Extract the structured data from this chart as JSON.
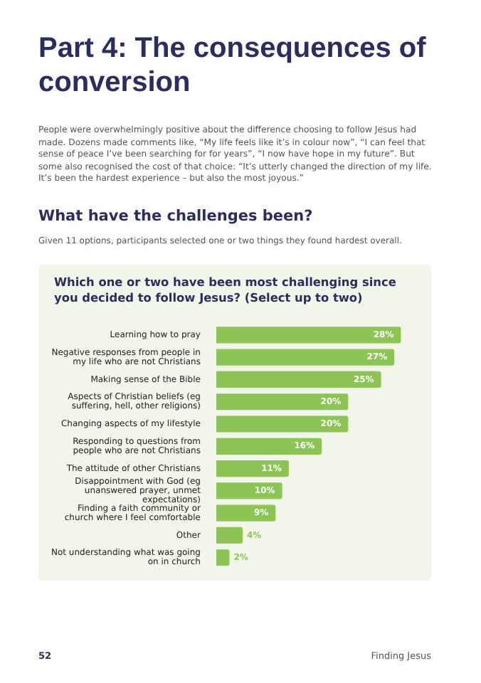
{
  "chart_data": {
    "type": "bar",
    "orientation": "horizontal",
    "title": "Which one or two have been most challenging since you decided to follow Jesus? (Select up to two)",
    "categories": [
      "Learning how to pray",
      "Negative responses from people in my life who are not Christians",
      "Making sense of the Bible",
      "Aspects of Christian beliefs (eg suffering, hell, other religions)",
      "Changing aspects of my lifestyle",
      "Responding to questions from people who are not Christians",
      "The attitude of other Christians",
      "Disappointment with God (eg unanswered prayer, unmet expectations)",
      "Finding a faith community or church where I feel comfortable",
      "Other",
      "Not understanding what was going on in church"
    ],
    "values": [
      28,
      27,
      25,
      20,
      20,
      16,
      11,
      10,
      9,
      4,
      2
    ],
    "color": "#8dc456",
    "value_labels": [
      "28%",
      "27%",
      "25%",
      "20%",
      "20%",
      "16%",
      "11%",
      "10%",
      "9%",
      "4%",
      "2%"
    ],
    "tick_labels": "y",
    "grid": false,
    "legend": false,
    "annotations": [
      "Part 4: The consequences of conversion",
      "People were overwhelmingly positive about the difference choosing to follow Jesus had made. Dozens made comments like, “My life feels like it’s in colour now”, “I can feel that sense of peace I’ve been searching for for years”, “I now have hope in my future”. But some also recognised the cost of that choice: “It’s utterly changed the direction of my life. It’s been the hardest experience – but also the most joyous.”",
      "What have the challenges been?",
      "Given 11 options, participants selected one or two things they found hardest overall.",
      "52",
      "Finding Jesus"
    ]
  }
}
